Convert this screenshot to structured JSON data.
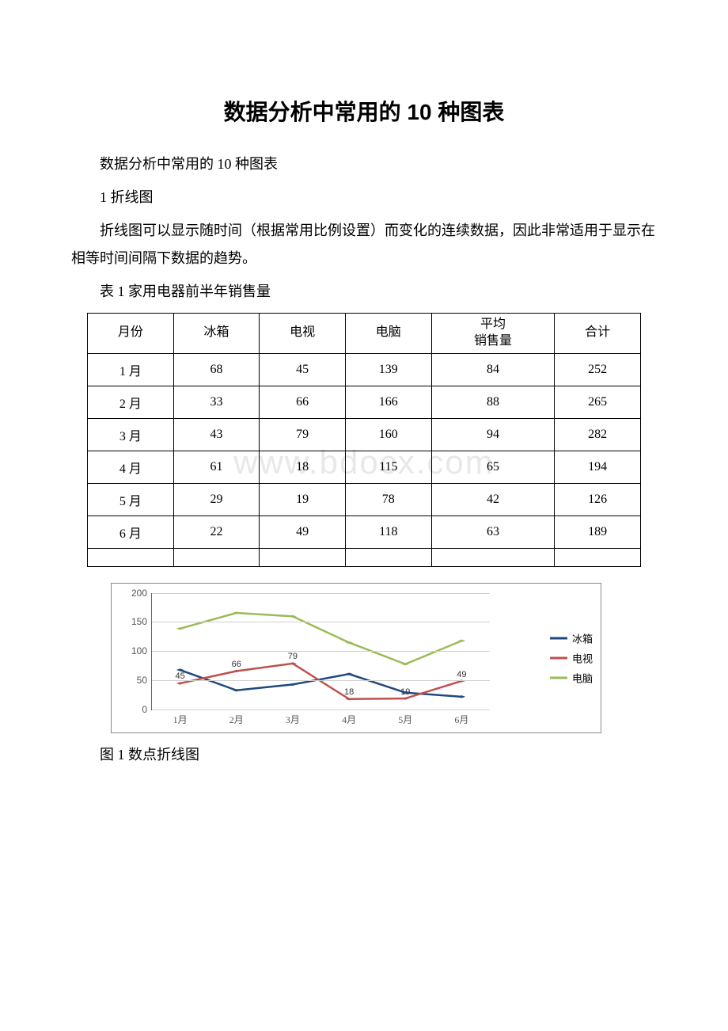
{
  "title": "数据分析中常用的 10 种图表",
  "subtitle": "数据分析中常用的 10 种图表",
  "section1_heading": "1 折线图",
  "section1_body": "折线图可以显示随时间（根据常用比例设置）而变化的连续数据，因此非常适用于显示在相等时间间隔下数据的趋势。",
  "table_caption": "表 1 家用电器前半年销售量",
  "chart_caption": "图 1 数点折线图",
  "watermark": "www.bdocx.com",
  "table": {
    "columns": [
      "月份",
      "冰箱",
      "电视",
      "电脑",
      "平均\n销售量",
      "合计"
    ],
    "rows": [
      [
        "1 月",
        "68",
        "45",
        "139",
        "84",
        "252"
      ],
      [
        "2 月",
        "33",
        "66",
        "166",
        "88",
        "265"
      ],
      [
        "3 月",
        "43",
        "79",
        "160",
        "94",
        "282"
      ],
      [
        "4 月",
        "61",
        "18",
        "115",
        "65",
        "194"
      ],
      [
        "5 月",
        "29",
        "19",
        "78",
        "42",
        "126"
      ],
      [
        "6 月",
        "22",
        "49",
        "118",
        "63",
        "189"
      ]
    ],
    "border_color": "#000000",
    "font_size": 16
  },
  "chart": {
    "type": "line",
    "categories": [
      "1月",
      "2月",
      "3月",
      "4月",
      "5月",
      "6月"
    ],
    "series": [
      {
        "name": "冰箱",
        "color": "#1f497d",
        "values": [
          68,
          33,
          43,
          61,
          29,
          22
        ]
      },
      {
        "name": "电视",
        "color": "#c0504d",
        "values": [
          45,
          66,
          79,
          18,
          19,
          49
        ]
      },
      {
        "name": "电脑",
        "color": "#9bbb59",
        "values": [
          139,
          166,
          160,
          115,
          78,
          118
        ]
      }
    ],
    "ylim": [
      0,
      200
    ],
    "ytick_step": 50,
    "grid_color": "#d0d0d0",
    "axis_color": "#666666",
    "background_color": "#ffffff",
    "line_width": 2.5,
    "marker_size": 4,
    "font_size_ticks": 12,
    "font_size_legend": 13,
    "data_labels": {
      "series": "电视",
      "color": "#333333",
      "font_size": 11
    }
  }
}
